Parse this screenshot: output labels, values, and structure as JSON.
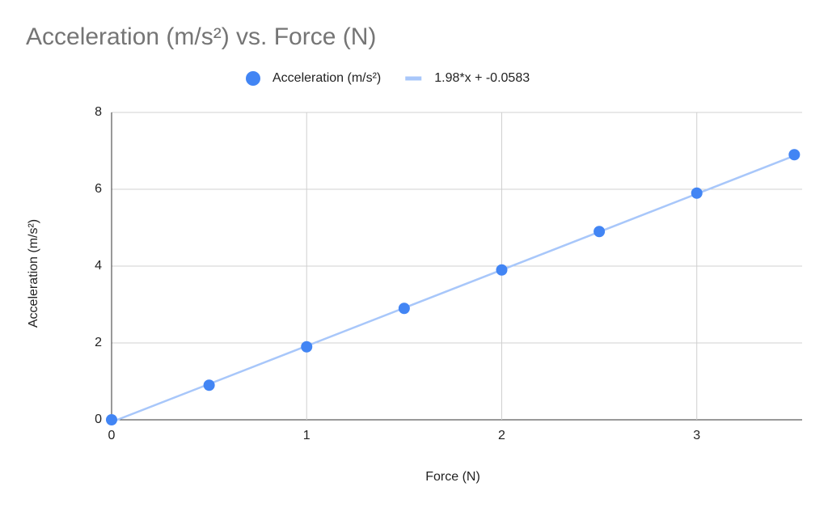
{
  "chart_data": {
    "type": "scatter",
    "title": "Acceleration (m/s²) vs. Force (N)",
    "x_label": "Force (N)",
    "y_label": "Acceleration (m/s²)",
    "series": [
      {
        "name": "Acceleration (m/s²)",
        "type": "scatter",
        "color": "#4285f4",
        "x": [
          0,
          0.5,
          1,
          1.5,
          2,
          2.5,
          3,
          3.5
        ],
        "values": [
          0,
          0.9,
          1.9,
          2.9,
          3.9,
          4.9,
          5.9,
          6.9
        ]
      },
      {
        "name": "1.98*x + -0.0583",
        "type": "line",
        "color": "#a8c7fa",
        "x": [
          0,
          3.5
        ],
        "values": [
          -0.0583,
          6.8717
        ]
      }
    ],
    "xlim": [
      0,
      3.54
    ],
    "ylim": [
      0,
      8
    ],
    "xticks": [
      0,
      1,
      2,
      3
    ],
    "yticks": [
      0,
      2,
      4,
      6,
      8
    ],
    "grid": true
  }
}
